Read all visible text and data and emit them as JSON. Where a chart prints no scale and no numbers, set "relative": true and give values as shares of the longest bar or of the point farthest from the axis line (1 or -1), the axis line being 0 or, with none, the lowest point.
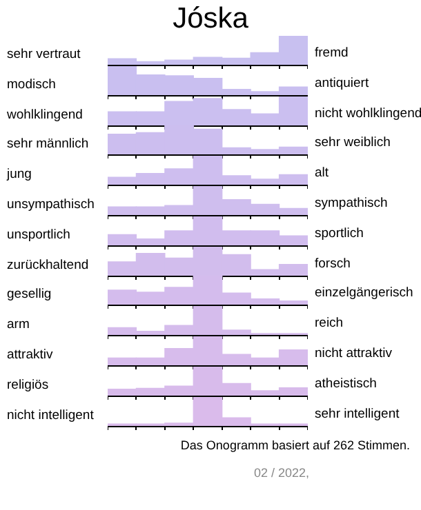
{
  "chart_data": [
    {
      "type": "bar",
      "title": "Jóska",
      "ylabel": "sehr vertraut",
      "y2label": "fremd",
      "relative": true,
      "categories": [
        null,
        null,
        null,
        null,
        null,
        null,
        null
      ],
      "color": "#c8c0f0",
      "values": [
        0.21,
        0.11,
        0.16,
        0.26,
        0.23,
        0.42,
        1
      ]
    },
    {
      "type": "bar",
      "ylabel": "modisch",
      "y2label": "antiquiert",
      "relative": true,
      "categories": [
        null,
        null,
        null,
        null,
        null,
        null,
        null
      ],
      "color": "#c9bff0",
      "values": [
        1,
        0.7,
        0.67,
        0.58,
        0.2,
        0.12,
        0.28
      ]
    },
    {
      "type": "bar",
      "ylabel": "wohlklingend",
      "y2label": "nicht wohlklingend",
      "relative": true,
      "categories": [
        null,
        null,
        null,
        null,
        null,
        null,
        null
      ],
      "color": "#cbbff0",
      "values": [
        0.47,
        0.47,
        0.83,
        0.93,
        0.55,
        0.4,
        1
      ]
    },
    {
      "type": "bar",
      "ylabel": "sehr männlich",
      "y2label": "sehr weiblich",
      "relative": true,
      "categories": [
        null,
        null,
        null,
        null,
        null,
        null,
        null
      ],
      "color": "#ccbeef",
      "values": [
        0.7,
        0.75,
        1,
        0.87,
        0.23,
        0.17,
        0.25
      ]
    },
    {
      "type": "bar",
      "ylabel": "jung",
      "y2label": "alt",
      "relative": true,
      "categories": [
        null,
        null,
        null,
        null,
        null,
        null,
        null
      ],
      "color": "#cebeef",
      "values": [
        0.26,
        0.39,
        0.55,
        1,
        0.31,
        0.19,
        0.35
      ]
    },
    {
      "type": "bar",
      "ylabel": "unsympathisch",
      "y2label": "sympathisch",
      "relative": true,
      "categories": [
        null,
        null,
        null,
        null,
        null,
        null,
        null
      ],
      "color": "#cfbeee",
      "values": [
        0.28,
        0.28,
        0.33,
        1,
        0.53,
        0.37,
        0.23
      ]
    },
    {
      "type": "bar",
      "ylabel": "unsportlich",
      "y2label": "sportlich",
      "relative": true,
      "categories": [
        null,
        null,
        null,
        null,
        null,
        null,
        null
      ],
      "color": "#d1bdee",
      "values": [
        0.37,
        0.22,
        0.5,
        1,
        0.5,
        0.5,
        0.33
      ]
    },
    {
      "type": "bar",
      "ylabel": "zurückhaltend",
      "y2label": "forsch",
      "relative": true,
      "categories": [
        null,
        null,
        null,
        null,
        null,
        null,
        null
      ],
      "color": "#d2bded",
      "values": [
        0.48,
        0.77,
        0.61,
        1,
        0.73,
        0.21,
        0.39
      ]
    },
    {
      "type": "bar",
      "ylabel": "gesellig",
      "y2label": "einzelgängerisch",
      "relative": true,
      "categories": [
        null,
        null,
        null,
        null,
        null,
        null,
        null
      ],
      "color": "#d4bced",
      "values": [
        0.5,
        0.43,
        0.6,
        1,
        0.4,
        0.2,
        0.13
      ]
    },
    {
      "type": "bar",
      "ylabel": "arm",
      "y2label": "reich",
      "relative": true,
      "categories": [
        null,
        null,
        null,
        null,
        null,
        null,
        null
      ],
      "color": "#d5bcec",
      "values": [
        0.25,
        0.13,
        0.33,
        1,
        0.17,
        0.05,
        0.05
      ]
    },
    {
      "type": "bar",
      "ylabel": "attraktiv",
      "y2label": "nicht attraktiv",
      "relative": true,
      "categories": [
        null,
        null,
        null,
        null,
        null,
        null,
        null
      ],
      "color": "#d7bcec",
      "values": [
        0.25,
        0.25,
        0.58,
        1,
        0.38,
        0.25,
        0.53
      ]
    },
    {
      "type": "bar",
      "ylabel": "religiös",
      "y2label": "atheistisch",
      "relative": true,
      "categories": [
        null,
        null,
        null,
        null,
        null,
        null,
        null
      ],
      "color": "#d8bbeb",
      "values": [
        0.22,
        0.25,
        0.33,
        1,
        0.42,
        0.17,
        0.27
      ]
    },
    {
      "type": "bar",
      "ylabel": "nicht intelligent",
      "y2label": "sehr intelligent",
      "relative": true,
      "categories": [
        null,
        null,
        null,
        null,
        null,
        null,
        null
      ],
      "color": "#dabbeb",
      "values": [
        0.07,
        0.07,
        0.1,
        1,
        0.28,
        0.07,
        0.07
      ],
      "annotations": [
        "Das Onogramm basiert auf 262 Stimmen.",
        "02 / 2022,"
      ]
    }
  ]
}
